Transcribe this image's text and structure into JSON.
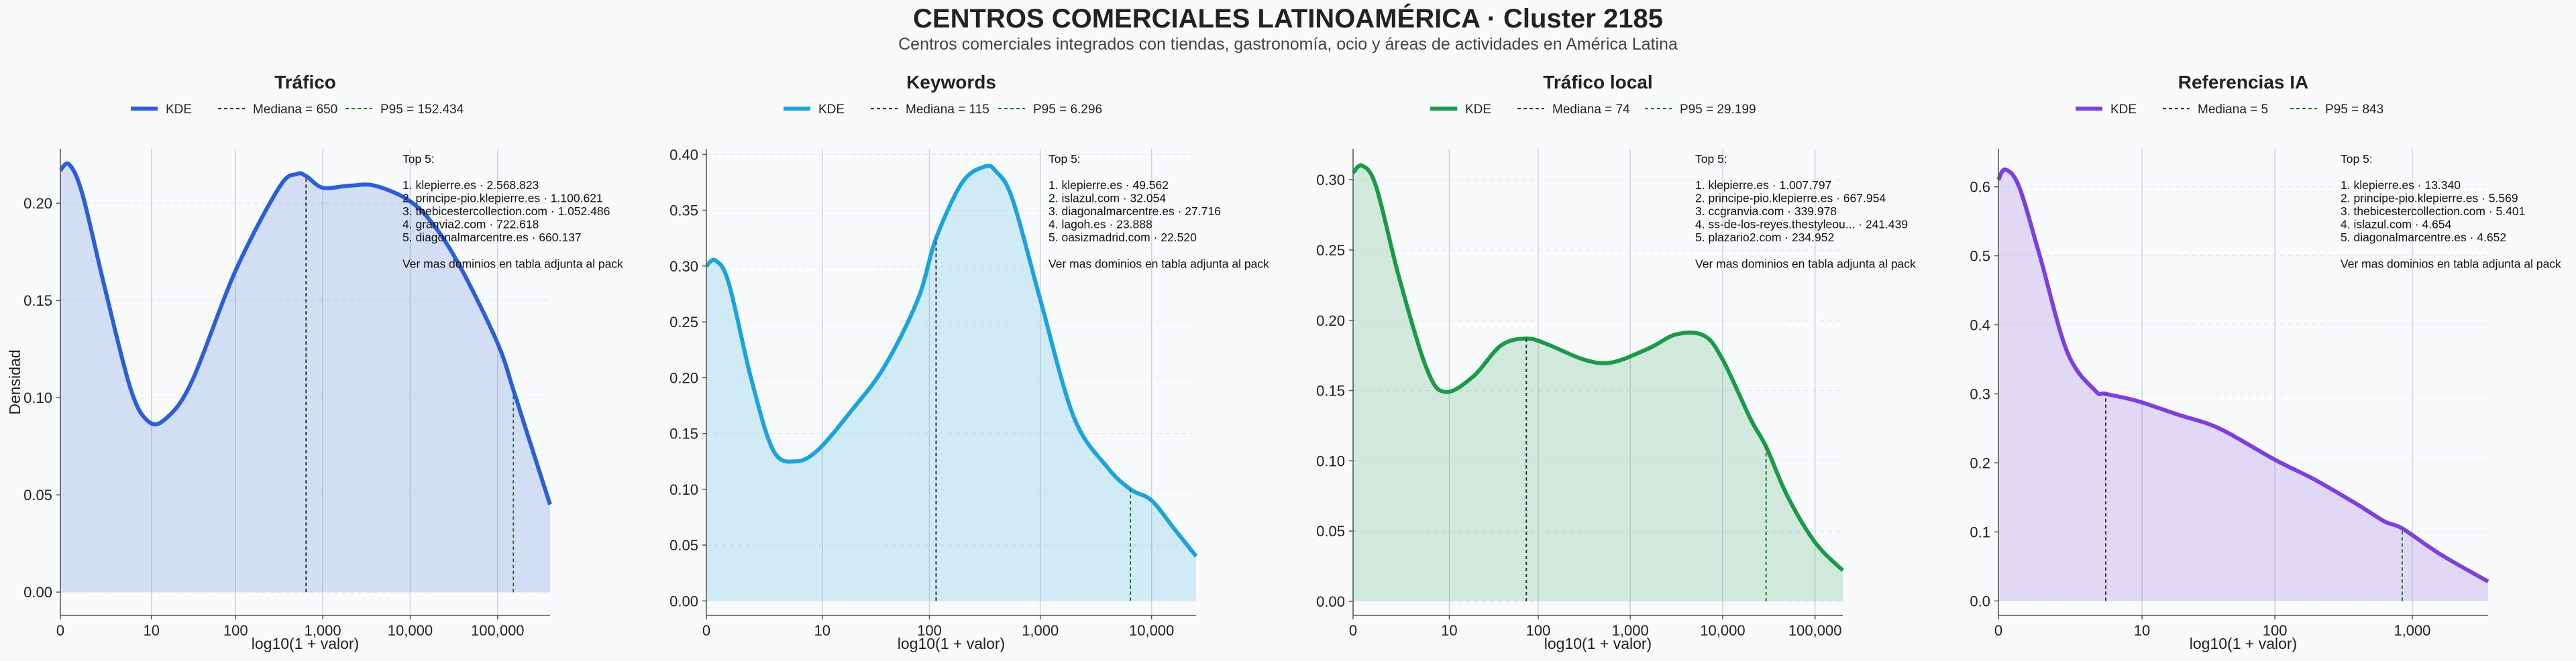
{
  "header": {
    "title": "CENTROS COMERCIALES LATINOAMÉRICA · Cluster 2185",
    "subtitle": "Centros comerciales integrados con tiendas, gastronomía, ocio y áreas de actividades en América Latina"
  },
  "shared": {
    "ylabel": "Densidad",
    "xlabel": "log10(1 + valor)",
    "legend_kde": "KDE"
  },
  "colors": {
    "trafico": "#2b5fd9",
    "keywords": "#1ba3dd",
    "trafico_local": "#1b9a4b",
    "referencias_ia": "#7c3fe0",
    "median_line": "#333333",
    "p95_line": "#1f7a2e"
  },
  "chart_data": [
    {
      "type": "area",
      "title": "Tráfico",
      "xlabel": "log10(1 + valor)",
      "ylabel": "Densidad",
      "xlim": [
        0,
        5.6
      ],
      "ylim": [
        -0.012,
        0.228
      ],
      "x_ticks": [
        {
          "value": 0,
          "label": "0"
        },
        {
          "value": 1.041,
          "label": "10"
        },
        {
          "value": 2.004,
          "label": "100"
        },
        {
          "value": 3.0,
          "label": "1,000"
        },
        {
          "value": 4.0,
          "label": "10,000"
        },
        {
          "value": 5.0,
          "label": "100,000"
        }
      ],
      "y_ticks": [
        0.0,
        0.05,
        0.1,
        0.15,
        0.2
      ],
      "y_tick_labels": [
        "0.00",
        "0.05",
        "0.10",
        "0.15",
        "0.20"
      ],
      "x": [
        0,
        0.1,
        0.25,
        0.5,
        0.8,
        1.0,
        1.2,
        1.5,
        2.0,
        2.5,
        2.7,
        2.81,
        3.0,
        3.3,
        3.6,
        4.0,
        4.3,
        4.6,
        5.0,
        5.18,
        5.35,
        5.6
      ],
      "values": [
        0.217,
        0.22,
        0.205,
        0.158,
        0.105,
        0.088,
        0.089,
        0.108,
        0.165,
        0.208,
        0.215,
        0.214,
        0.208,
        0.209,
        0.209,
        0.201,
        0.187,
        0.165,
        0.128,
        0.104,
        0.08,
        0.045
      ],
      "median": {
        "value": 650,
        "x": 2.81,
        "y": 0.214,
        "label": "Mediana = 650"
      },
      "p95": {
        "value": 152434,
        "x": 5.18,
        "y": 0.104,
        "label": "P95 = 152.434"
      },
      "annotation": {
        "heading": "Top 5:",
        "lines": [
          "1. klepierre.es · 2.568.823",
          "2. principe-pio.klepierre.es · 1.100.621",
          "3. thebicestercollection.com · 1.052.486",
          "4. granvia2.com · 722.618",
          "5. diagonalmarcentre.es · 660.137"
        ],
        "footer": "Ver mas dominios en tabla adjunta al pack"
      }
    },
    {
      "type": "area",
      "title": "Keywords",
      "xlabel": "log10(1 + valor)",
      "ylabel": "",
      "xlim": [
        0,
        4.4
      ],
      "ylim": [
        -0.013,
        0.405
      ],
      "x_ticks": [
        {
          "value": 0,
          "label": "0"
        },
        {
          "value": 1.041,
          "label": "10"
        },
        {
          "value": 2.004,
          "label": "100"
        },
        {
          "value": 3.0,
          "label": "1,000"
        },
        {
          "value": 4.0,
          "label": "10,000"
        }
      ],
      "y_ticks": [
        0.0,
        0.05,
        0.1,
        0.15,
        0.2,
        0.25,
        0.3,
        0.35,
        0.4
      ],
      "y_tick_labels": [
        "0.00",
        "0.05",
        "0.10",
        "0.15",
        "0.20",
        "0.25",
        "0.30",
        "0.35",
        "0.40"
      ],
      "x": [
        0,
        0.08,
        0.2,
        0.4,
        0.6,
        0.8,
        1.0,
        1.3,
        1.6,
        1.9,
        2.064,
        2.3,
        2.5,
        2.6,
        2.75,
        3.0,
        3.3,
        3.6,
        3.81,
        4.0,
        4.2,
        4.4
      ],
      "values": [
        0.3,
        0.305,
        0.285,
        0.2,
        0.135,
        0.125,
        0.135,
        0.17,
        0.21,
        0.27,
        0.325,
        0.375,
        0.389,
        0.385,
        0.36,
        0.27,
        0.165,
        0.12,
        0.1,
        0.09,
        0.065,
        0.04
      ],
      "median": {
        "value": 115,
        "x": 2.064,
        "y": 0.325,
        "label": "Mediana = 115"
      },
      "p95": {
        "value": 6296,
        "x": 3.81,
        "y": 0.1,
        "label": "P95 = 6.296"
      },
      "annotation": {
        "heading": "Top 5:",
        "lines": [
          "1. klepierre.es · 49.562",
          "2. islazul.com · 32.054",
          "3. diagonalmarcentre.es · 27.716",
          "4. lagoh.es · 23.888",
          "5. oasizmadrid.com · 22.520"
        ],
        "footer": "Ver mas dominios en tabla adjunta al pack"
      }
    },
    {
      "type": "area",
      "title": "Tráfico local",
      "xlabel": "log10(1 + valor)",
      "ylabel": "",
      "xlim": [
        0,
        5.3
      ],
      "ylim": [
        -0.01,
        0.322
      ],
      "x_ticks": [
        {
          "value": 0,
          "label": "0"
        },
        {
          "value": 1.041,
          "label": "10"
        },
        {
          "value": 2.004,
          "label": "100"
        },
        {
          "value": 3.0,
          "label": "1,000"
        },
        {
          "value": 4.0,
          "label": "10,000"
        },
        {
          "value": 5.0,
          "label": "100,000"
        }
      ],
      "y_ticks": [
        0.0,
        0.05,
        0.1,
        0.15,
        0.2,
        0.25,
        0.3
      ],
      "y_tick_labels": [
        "0.00",
        "0.05",
        "0.10",
        "0.15",
        "0.20",
        "0.25",
        "0.30"
      ],
      "x": [
        0,
        0.1,
        0.25,
        0.5,
        0.8,
        1.0,
        1.3,
        1.6,
        1.875,
        2.1,
        2.5,
        2.8,
        3.2,
        3.5,
        3.8,
        4.0,
        4.3,
        4.47,
        4.7,
        5.0,
        5.3
      ],
      "values": [
        0.305,
        0.31,
        0.295,
        0.23,
        0.165,
        0.149,
        0.16,
        0.182,
        0.187,
        0.183,
        0.172,
        0.17,
        0.18,
        0.19,
        0.189,
        0.172,
        0.13,
        0.11,
        0.075,
        0.042,
        0.022
      ],
      "median": {
        "value": 74,
        "x": 1.875,
        "y": 0.187,
        "label": "Mediana = 74"
      },
      "p95": {
        "value": 29199,
        "x": 4.47,
        "y": 0.11,
        "label": "P95 = 29.199"
      },
      "annotation": {
        "heading": "Top 5:",
        "lines": [
          "1. klepierre.es · 1.007.797",
          "2. principe-pio.klepierre.es · 667.954",
          "3. ccgranvia.com · 339.978",
          "4. ss-de-los-reyes.thestyleou... · 241.439",
          "5. plazario2.com · 234.952"
        ],
        "footer": "Ver mas dominios en tabla adjunta al pack"
      }
    },
    {
      "type": "area",
      "title": "Referencias IA",
      "xlabel": "log10(1 + valor)",
      "ylabel": "",
      "xlim": [
        0,
        3.55
      ],
      "ylim": [
        -0.021,
        0.655
      ],
      "x_ticks": [
        {
          "value": 0,
          "label": "0"
        },
        {
          "value": 1.041,
          "label": "10"
        },
        {
          "value": 2.004,
          "label": "100"
        },
        {
          "value": 3.0,
          "label": "1,000"
        }
      ],
      "y_ticks": [
        0.0,
        0.1,
        0.2,
        0.3,
        0.4,
        0.5,
        0.6
      ],
      "y_tick_labels": [
        "0.0",
        "0.1",
        "0.2",
        "0.3",
        "0.4",
        "0.5",
        "0.6"
      ],
      "x": [
        0,
        0.05,
        0.15,
        0.3,
        0.5,
        0.7,
        0.778,
        1.0,
        1.3,
        1.6,
        2.0,
        2.3,
        2.6,
        2.8,
        2.927,
        3.2,
        3.55
      ],
      "values": [
        0.61,
        0.625,
        0.6,
        0.5,
        0.36,
        0.305,
        0.3,
        0.29,
        0.27,
        0.25,
        0.205,
        0.175,
        0.14,
        0.115,
        0.105,
        0.068,
        0.028
      ],
      "median": {
        "value": 5,
        "x": 0.778,
        "y": 0.3,
        "label": "Mediana = 5"
      },
      "p95": {
        "value": 843,
        "x": 2.927,
        "y": 0.105,
        "label": "P95 = 843"
      },
      "annotation": {
        "heading": "Top 5:",
        "lines": [
          "1. klepierre.es · 13.340",
          "2. principe-pio.klepierre.es · 5.569",
          "3. thebicestercollection.com · 5.401",
          "4. islazul.com · 4.654",
          "5. diagonalmarcentre.es · 4.652"
        ],
        "footer": "Ver mas dominios en tabla adjunta al pack"
      }
    }
  ]
}
